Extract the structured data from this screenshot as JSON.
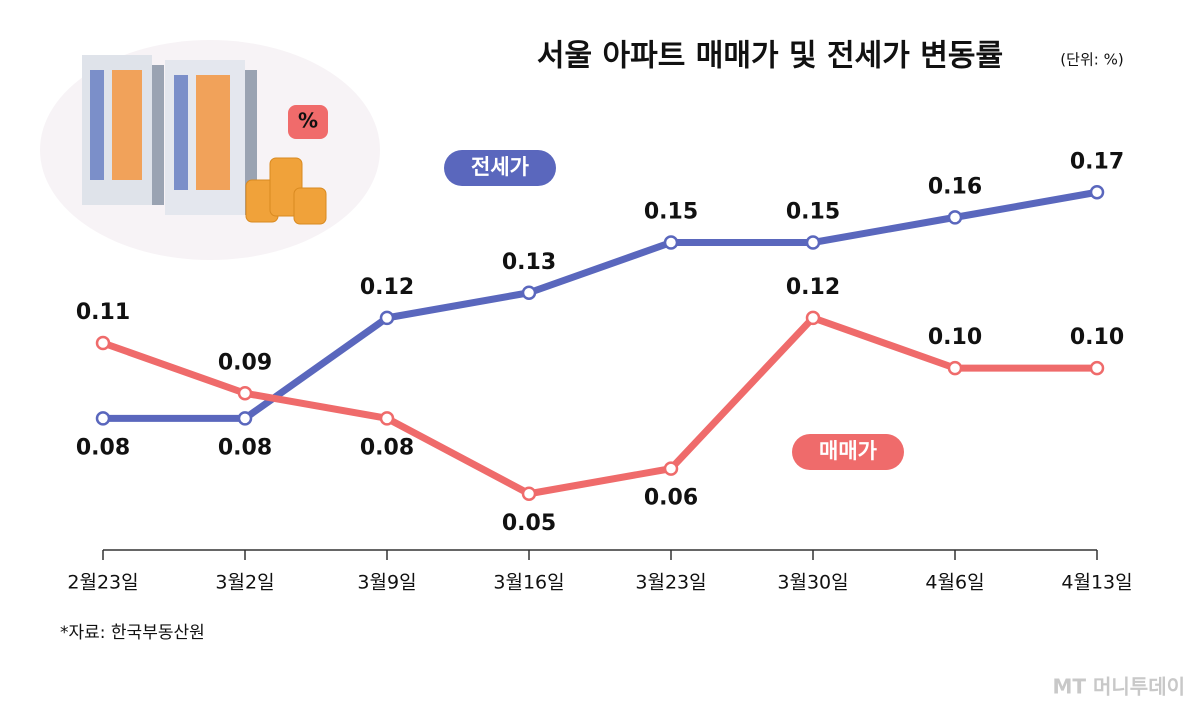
{
  "chart_data": {
    "type": "line",
    "title": "서울 아파트 매매가 및 전세가 변동률",
    "unit_note": "(단위: %)",
    "source": "*자료: 한국부동산원",
    "watermark": "MT 머니투데이",
    "categories": [
      "2월23일",
      "3월2일",
      "3월9일",
      "3월16일",
      "3월23일",
      "3월30일",
      "4월6일",
      "4월13일"
    ],
    "series": [
      {
        "name": "전세가",
        "color": "#5a67bd",
        "values": [
          0.08,
          0.08,
          0.12,
          0.13,
          0.15,
          0.15,
          0.16,
          0.17
        ],
        "value_labels": [
          "0.08",
          "0.08",
          "0.12",
          "0.13",
          "0.15",
          "0.15",
          "0.16",
          "0.17"
        ]
      },
      {
        "name": "매매가",
        "color": "#ef6b6b",
        "values": [
          0.11,
          0.09,
          0.08,
          0.05,
          0.06,
          0.12,
          0.1,
          0.1
        ],
        "value_labels": [
          "0.11",
          "0.09",
          "0.08",
          "0.05",
          "0.06",
          "0.12",
          "0.10",
          "0.10"
        ]
      }
    ],
    "ylim": [
      0.03,
      0.19
    ]
  }
}
